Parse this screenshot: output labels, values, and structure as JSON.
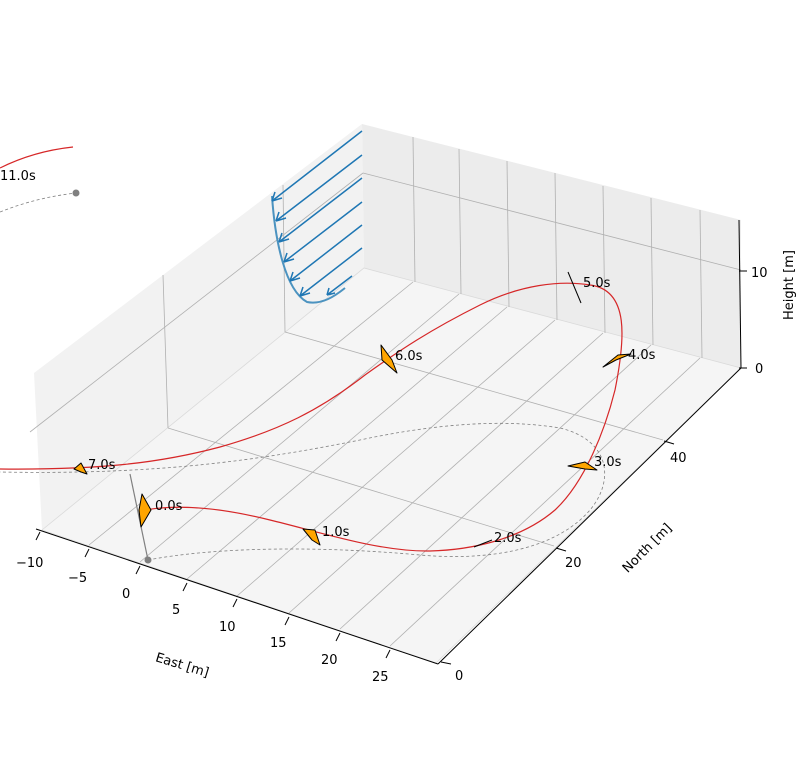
{
  "chart_data": {
    "type": "3d-line",
    "title": "",
    "xlabel": "East [m]",
    "ylabel": "North [m]",
    "zlabel": "Height [m]",
    "xlim": [
      -10,
      30
    ],
    "ylim": [
      0,
      60
    ],
    "zlim": [
      0,
      15
    ],
    "x_ticks": [
      "−10",
      "−5",
      "0",
      "5",
      "10",
      "15",
      "20",
      "25"
    ],
    "y_ticks": [
      "0",
      "20",
      "40"
    ],
    "z_ticks": [
      "0",
      "10"
    ],
    "grid": true,
    "series": [
      {
        "role": "trajectory",
        "color": "#d62728",
        "line": "solid"
      },
      {
        "role": "ground-projection",
        "color": "#808080",
        "line": "dashed"
      },
      {
        "role": "tether",
        "color": "#808080",
        "line": "solid"
      },
      {
        "role": "wind-profile",
        "color": "#1f77b4",
        "line": "arrows"
      }
    ],
    "time_labels": [
      {
        "label": "0.0s",
        "t": 0
      },
      {
        "label": "1.0s",
        "t": 1
      },
      {
        "label": "2.0s",
        "t": 2
      },
      {
        "label": "3.0s",
        "t": 3
      },
      {
        "label": "4.0s",
        "t": 4
      },
      {
        "label": "5.0s",
        "t": 5
      },
      {
        "label": "6.0s",
        "t": 6
      },
      {
        "label": "7.0s",
        "t": 7
      },
      {
        "label": "11.0s",
        "t": 11
      }
    ]
  }
}
